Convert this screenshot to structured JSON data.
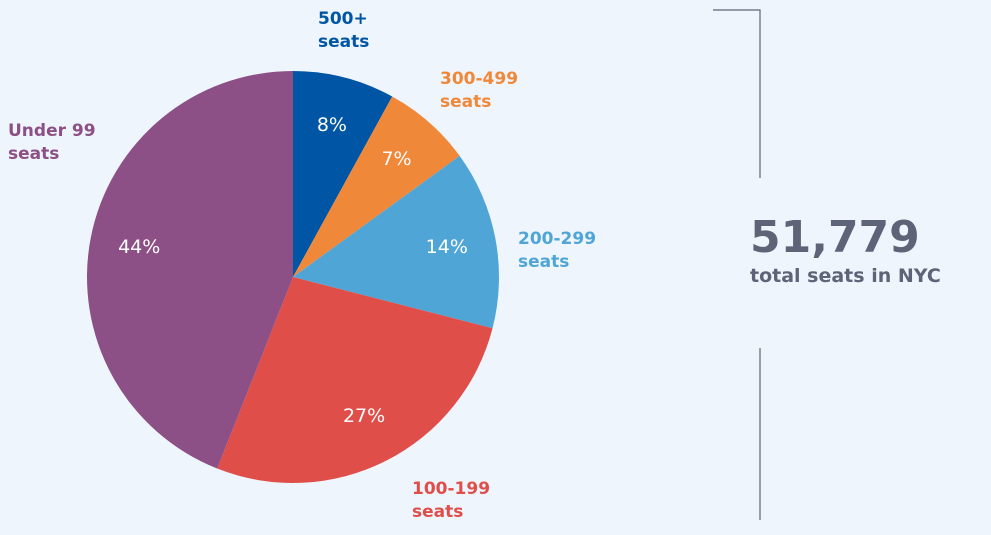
{
  "chart_data": {
    "type": "pie",
    "categories": [
      "500+ seats",
      "300-499 seats",
      "200-299 seats",
      "100-199 seats",
      "Under 99 seats"
    ],
    "values": [
      8,
      7,
      14,
      27,
      44
    ],
    "value_labels": [
      "8%",
      "7%",
      "14%",
      "27%",
      "44%"
    ],
    "colors": [
      "#0055a4",
      "#f0883a",
      "#4fa5d6",
      "#e04e4a",
      "#8c4f86"
    ],
    "total": "51,779",
    "total_text": "total seats in NYC"
  }
}
